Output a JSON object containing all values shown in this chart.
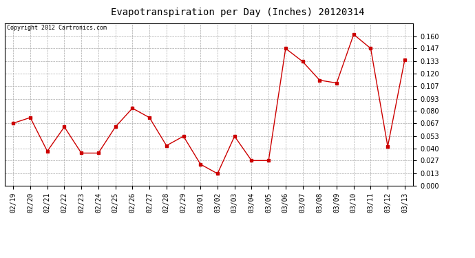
{
  "title": "Evapotranspiration per Day (Inches) 20120314",
  "copyright": "Copyright 2012 Cartronics.com",
  "dates": [
    "02/19",
    "02/20",
    "02/21",
    "02/22",
    "02/23",
    "02/24",
    "02/25",
    "02/26",
    "02/27",
    "02/28",
    "02/29",
    "03/01",
    "03/02",
    "03/03",
    "03/04",
    "03/05",
    "03/06",
    "03/07",
    "03/08",
    "03/09",
    "03/10",
    "03/11",
    "03/12",
    "03/13"
  ],
  "values": [
    0.067,
    0.073,
    0.037,
    0.063,
    0.035,
    0.035,
    0.063,
    0.083,
    0.073,
    0.043,
    0.053,
    0.023,
    0.013,
    0.053,
    0.027,
    0.027,
    0.147,
    0.133,
    0.113,
    0.11,
    0.162,
    0.147,
    0.042,
    0.135
  ],
  "line_color": "#cc0000",
  "marker": "s",
  "marker_size": 2.5,
  "ylim": [
    0.0,
    0.174
  ],
  "yticks": [
    0.0,
    0.013,
    0.027,
    0.04,
    0.053,
    0.067,
    0.08,
    0.093,
    0.107,
    0.12,
    0.133,
    0.147,
    0.16
  ],
  "background_color": "#ffffff",
  "grid_color": "#aaaaaa",
  "title_fontsize": 10,
  "copyright_fontsize": 6,
  "tick_fontsize": 7,
  "border_color": "#000000"
}
